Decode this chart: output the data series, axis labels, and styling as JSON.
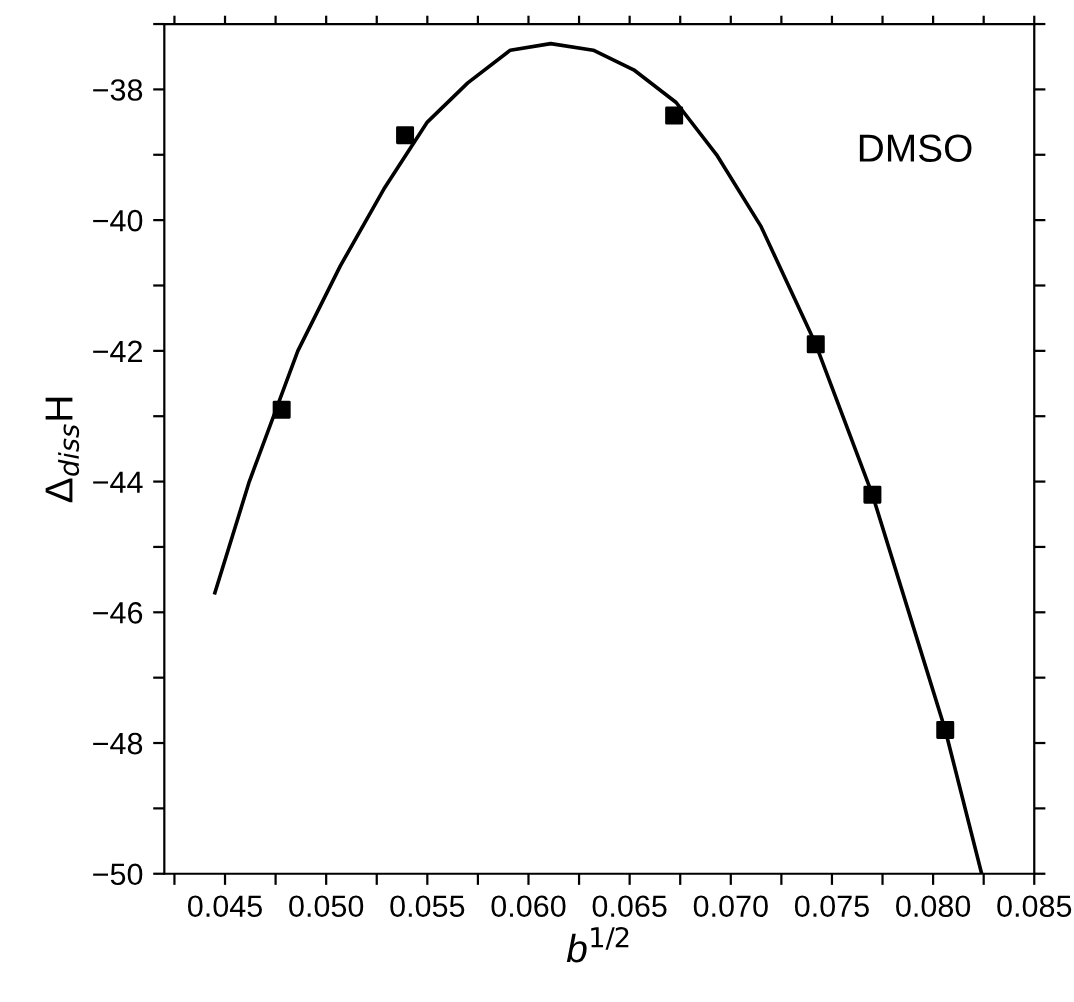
{
  "chart_data": {
    "type": "scatter",
    "xlabel": "b$^{1/2}$",
    "ylabel": "Δ$_{diss}$H",
    "annotations": [
      "DMSO"
    ],
    "xlim": [
      0.042,
      0.085
    ],
    "ylim": [
      -50,
      -37
    ],
    "xticks": [
      {
        "value": 0.0425,
        "label": null
      },
      0.045,
      {
        "value": 0.0475,
        "label": null
      },
      {
        "value": 0.05,
        "label": "0.050"
      },
      {
        "value": 0.0525,
        "label": null
      },
      0.055,
      {
        "value": 0.0575,
        "label": null
      },
      {
        "value": 0.06,
        "label": "0.060"
      },
      {
        "value": 0.0625,
        "label": null
      },
      0.065,
      {
        "value": 0.0675,
        "label": null
      },
      {
        "value": 0.07,
        "label": "0.070"
      },
      {
        "value": 0.0725,
        "label": null
      },
      0.075,
      {
        "value": 0.0775,
        "label": null
      },
      {
        "value": 0.08,
        "label": "0.080"
      },
      {
        "value": 0.0825,
        "label": null
      },
      0.085
    ],
    "yticks": [
      {
        "value": -50,
        "label": "−50"
      },
      {
        "value": -49,
        "label": null
      },
      {
        "value": -48,
        "label": "−48"
      },
      {
        "value": -47,
        "label": null
      },
      {
        "value": -46,
        "label": "−46"
      },
      {
        "value": -45,
        "label": null
      },
      {
        "value": -44,
        "label": "−44"
      },
      {
        "value": -43,
        "label": null
      },
      {
        "value": -42,
        "label": "−42"
      },
      {
        "value": -41,
        "label": null
      },
      {
        "value": -40,
        "label": "−40"
      },
      {
        "value": -39,
        "label": null
      },
      {
        "value": -38,
        "label": "−38"
      },
      {
        "value": -37,
        "label": null
      }
    ],
    "grid": false,
    "series": [
      {
        "color": "#000000",
        "marker": "square",
        "x": [
          0.0478,
          0.0539,
          0.0672,
          0.0742,
          0.077,
          0.0806
        ],
        "values": [
          -42.9,
          -38.7,
          -38.4,
          -41.9,
          -44.2,
          -47.8
        ]
      },
      {
        "type": "line",
        "color": "#000000",
        "marker": "none",
        "line_style": "solid",
        "x": [
          0.0445,
          0.0462,
          0.0486,
          0.0507,
          0.0529,
          0.055,
          0.057,
          0.0591,
          0.0611,
          0.0632,
          0.0652,
          0.0673,
          0.0693,
          0.0715,
          0.0733,
          0.0742,
          0.077,
          0.0797,
          0.0806,
          0.0824
        ],
        "values": [
          -45.7,
          -44.0,
          -42.0,
          -40.7,
          -39.5,
          -38.5,
          -37.9,
          -37.4,
          -37.3,
          -37.4,
          -37.7,
          -38.2,
          -39.0,
          -40.1,
          -41.3,
          -41.9,
          -44.2,
          -46.9,
          -47.8,
          -50.0
        ]
      }
    ]
  }
}
